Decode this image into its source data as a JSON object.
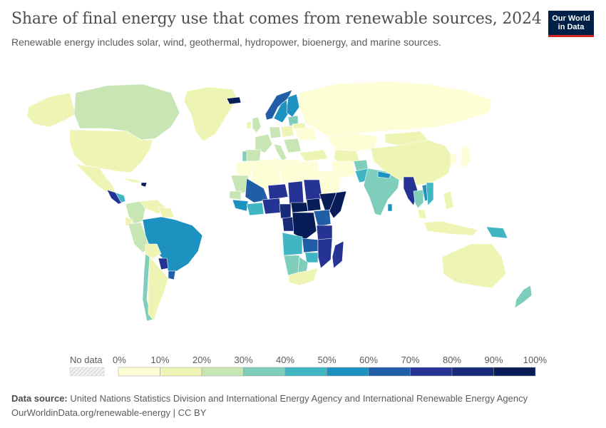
{
  "header": {
    "title": "Share of final energy use that comes from renewable sources, 2024",
    "subtitle": "Renewable energy includes solar, wind, geothermal, hydropower, bioenergy, and marine sources."
  },
  "logo": {
    "line1": "Our World",
    "line2": "in Data"
  },
  "legend": {
    "no_data_label": "No data",
    "ticks": [
      "0%",
      "10%",
      "20%",
      "30%",
      "40%",
      "50%",
      "60%",
      "70%",
      "80%",
      "90%",
      "100%"
    ],
    "colors": [
      "#fefed6",
      "#eef5b4",
      "#c8e6b4",
      "#7fcdbb",
      "#40b6c4",
      "#1d91c0",
      "#225ea8",
      "#253494",
      "#162a78",
      "#081d58"
    ]
  },
  "footer": {
    "source_label": "Data source:",
    "source_text": "United Nations Statistics Division and International Energy Agency and International Renewable Energy Agency",
    "url_line": "OurWorldinData.org/renewable-energy | CC BY"
  },
  "colors": {
    "border": "#ffffff",
    "no_data": "#e4e4e4"
  }
}
